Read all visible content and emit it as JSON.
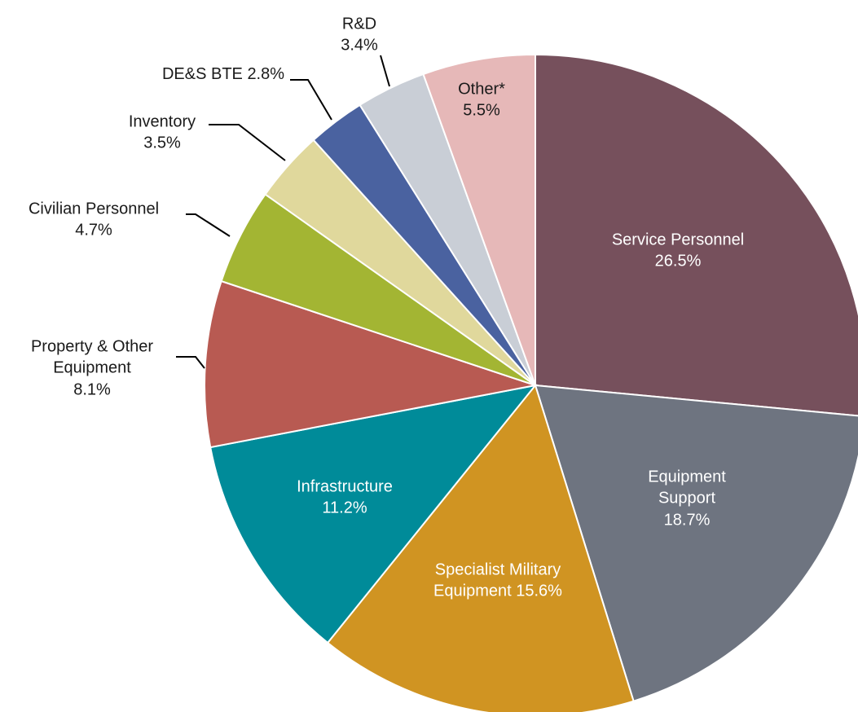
{
  "chart_data": {
    "type": "pie",
    "categories": [
      "Service Personnel",
      "Equipment Support",
      "Specialist Military Equipment",
      "Infrastructure",
      "Property & Other Equipment",
      "Civilian Personnel",
      "Inventory",
      "DE&S BTE",
      "R&D",
      "Other*"
    ],
    "values": [
      26.5,
      18.7,
      15.6,
      11.2,
      8.1,
      4.7,
      3.5,
      2.8,
      3.4,
      5.5
    ],
    "value_labels": [
      "26.5%",
      "18.7%",
      "15.6%",
      "11.2%",
      "8.1%",
      "4.7%",
      "3.5%",
      "2.8%",
      "3.4%",
      "5.5%"
    ],
    "colors": [
      "#76505c",
      "#6e7480",
      "#d09422",
      "#008b99",
      "#b85a52",
      "#a3b533",
      "#e0d89c",
      "#4a62a0",
      "#c9ced6",
      "#e6b8b8"
    ]
  }
}
